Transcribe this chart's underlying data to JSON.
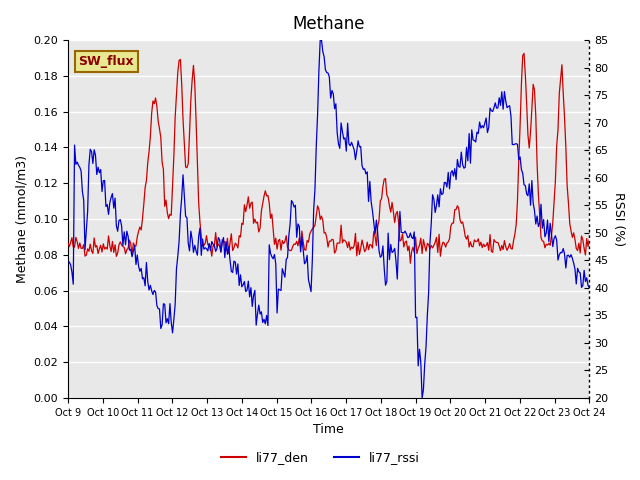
{
  "title": "Methane",
  "xlabel": "Time",
  "ylabel_left": "Methane (mmol/m3)",
  "ylabel_right": "RSSI (%)",
  "x_tick_labels": [
    "Oct 9",
    "Oct 10",
    "Oct 11",
    "Oct 12",
    "Oct 13",
    "Oct 14",
    "Oct 15",
    "Oct 16",
    "Oct 17",
    "Oct 18",
    "Oct 19",
    "Oct 20",
    "Oct 21",
    "Oct 22",
    "Oct 23",
    "Oct 24"
  ],
  "ylim_left": [
    0.0,
    0.2
  ],
  "ylim_right": [
    20,
    85
  ],
  "yticks_left": [
    0.0,
    0.02,
    0.04,
    0.06,
    0.08,
    0.1,
    0.12,
    0.14,
    0.16,
    0.18,
    0.2
  ],
  "yticks_right": [
    20,
    25,
    30,
    35,
    40,
    45,
    50,
    55,
    60,
    65,
    70,
    75,
    80,
    85
  ],
  "color_den": "#cc0000",
  "color_rssi": "#0000cc",
  "legend_label_den": "li77_den",
  "legend_label_rssi": "li77_rssi",
  "annotation_text": "SW_flux",
  "annotation_bg": "#e8e890",
  "annotation_border": "#996600",
  "background_color": "#e8e8e8",
  "grid_color": "#ffffff",
  "num_points": 400
}
